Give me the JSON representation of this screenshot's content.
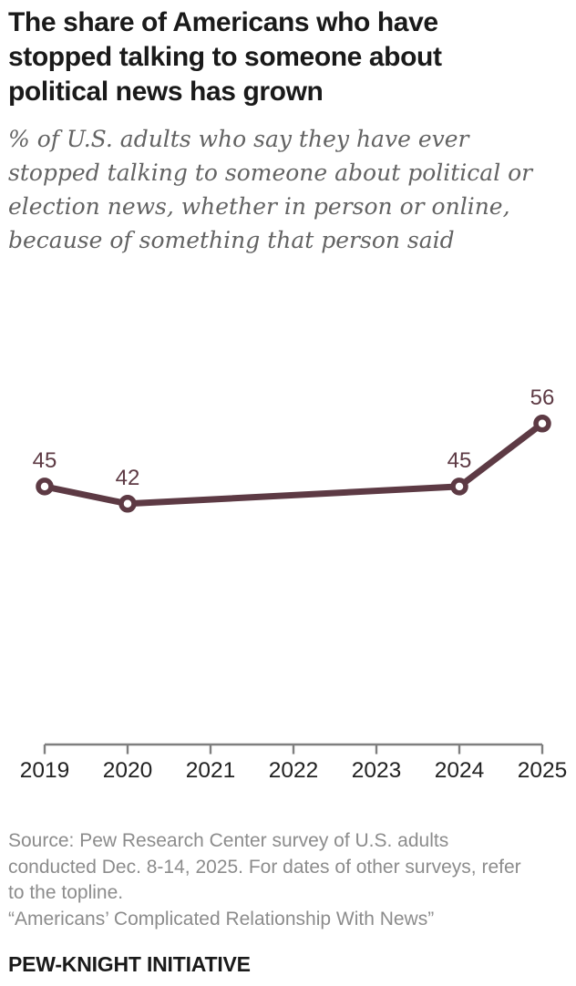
{
  "header": {
    "title": "The share of Americans who have stopped talking to someone about political news has grown",
    "subtitle": "% of U.S. adults who say they have ever stopped talking to someone about political or election news, whether in person or online, because of something that person said"
  },
  "chart_data": {
    "type": "line",
    "x_ticks": [
      "2019",
      "2020",
      "2021",
      "2022",
      "2023",
      "2024",
      "2025"
    ],
    "points": [
      {
        "year": "2019",
        "value": 45
      },
      {
        "year": "2020",
        "value": 42
      },
      {
        "year": "2024",
        "value": 45
      },
      {
        "year": "2025",
        "value": 56
      }
    ],
    "data_labels": [
      45,
      42,
      45,
      56
    ],
    "ylim": [
      0,
      65
    ],
    "grid": false,
    "legend": false,
    "marker": "open-circle",
    "line_color": "#5d3a44",
    "axis_color": "#7f7f7f",
    "tick_label_color": "#222222"
  },
  "footer": {
    "source": "Source: Pew Research Center survey of U.S. adults conducted Dec. 8-14, 2025. For dates of other surveys, refer to the topline.",
    "report": "“Americans’ Complicated Relationship With News”",
    "brand": "PEW-KNIGHT INITIATIVE"
  }
}
